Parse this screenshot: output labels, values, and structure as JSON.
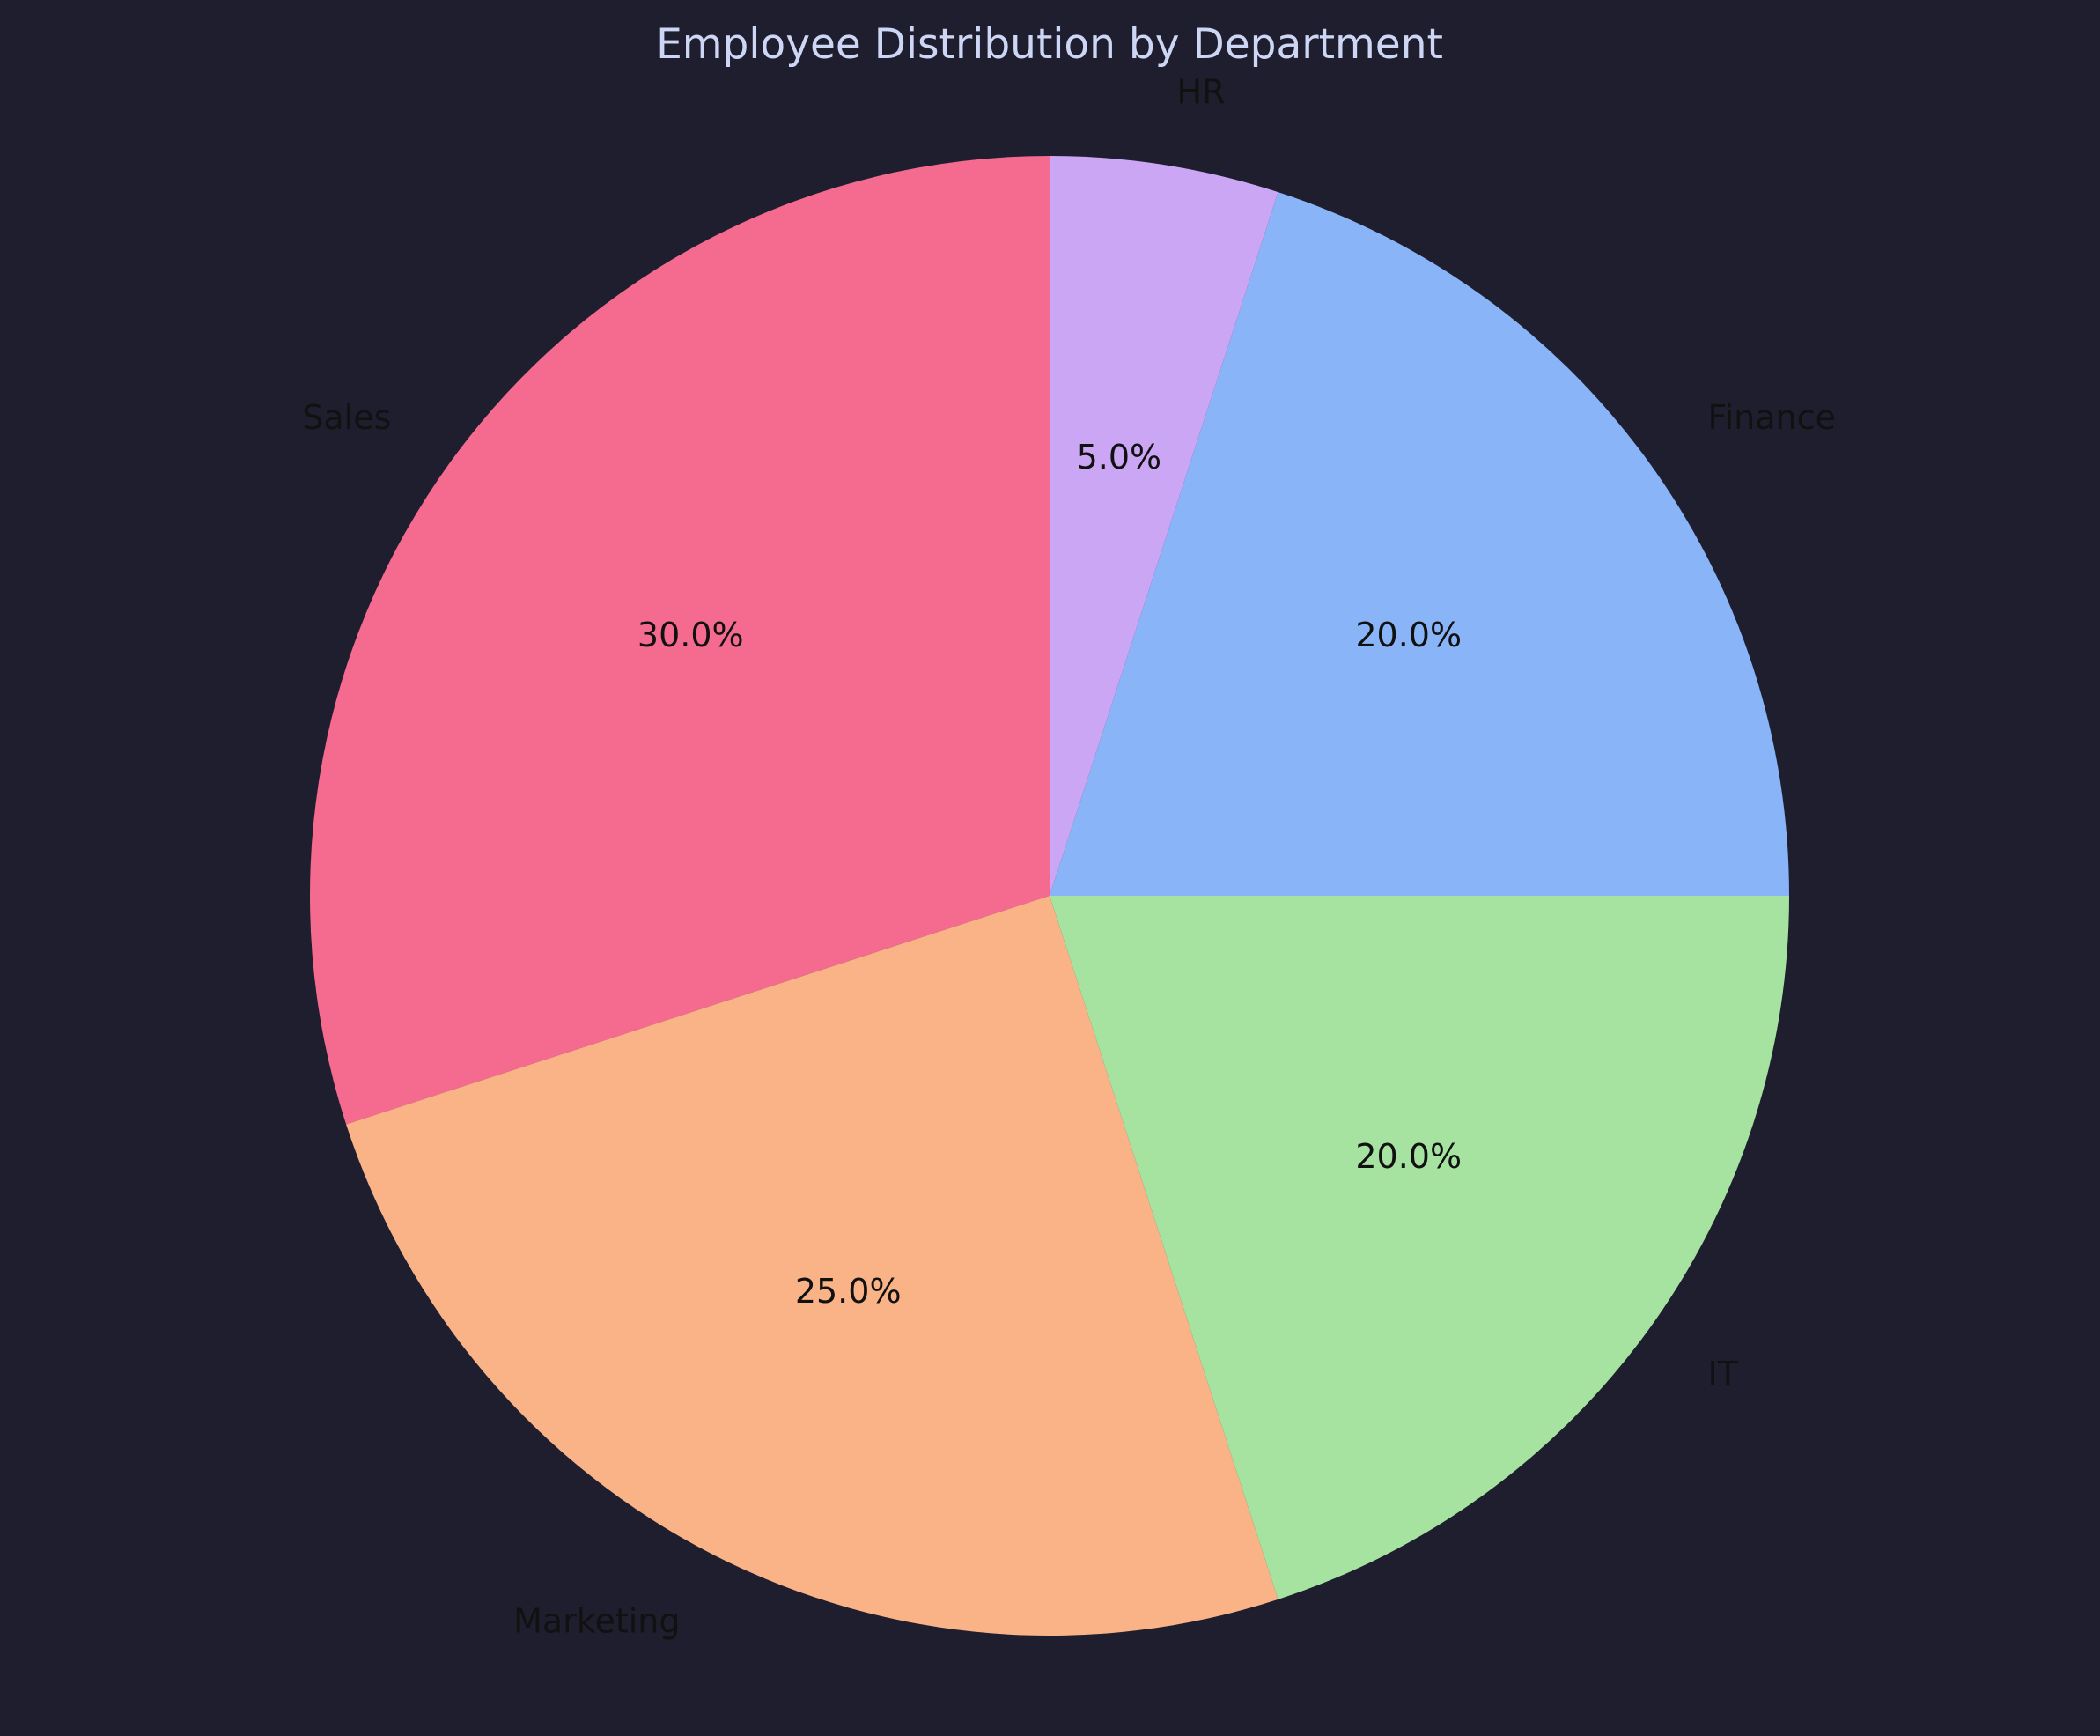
{
  "chart_data": {
    "type": "pie",
    "title": "Employee Distribution by Department",
    "categories": [
      "Sales",
      "Marketing",
      "IT",
      "Finance",
      "HR"
    ],
    "values": [
      30,
      25,
      20,
      20,
      5
    ],
    "percent_labels": [
      "30.0%",
      "25.0%",
      "20.0%",
      "20.0%",
      "5.0%"
    ],
    "colors": [
      "#f46b8f",
      "#f9b387",
      "#a6e3a1",
      "#89b4f8",
      "#cba6f5"
    ],
    "start_angle_deg": 90,
    "direction": "counterclockwise",
    "background": "#1f1e2e",
    "title_color": "#cdd6f4",
    "legend": "none"
  }
}
